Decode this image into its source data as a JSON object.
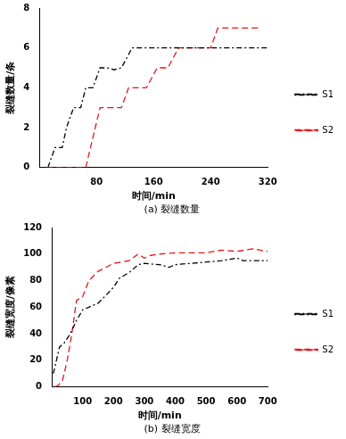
{
  "chart_data": [
    {
      "type": "line",
      "title": "(a) 裂缝数量",
      "x_label": "时间/min",
      "y_label": "裂缝数量/条",
      "xlim": [
        0,
        320
      ],
      "xticks": [
        80,
        160,
        240,
        320
      ],
      "ylim": [
        0,
        8
      ],
      "yticks": [
        0,
        2,
        4,
        6,
        8
      ],
      "grid": false,
      "legend": "right",
      "series": [
        {
          "name": "S1",
          "color": "#000000",
          "line_style": "dashdot",
          "x": [
            12,
            22,
            32,
            38,
            48,
            58,
            65,
            75,
            85,
            95,
            105,
            115,
            130,
            160,
            200,
            240,
            280,
            320
          ],
          "values": [
            0,
            1,
            1,
            2,
            3,
            3,
            4,
            4,
            5,
            5,
            4.9,
            5,
            6,
            6,
            6,
            6,
            6,
            6
          ]
        },
        {
          "name": "S2",
          "color": "#e8141b",
          "line_style": "dashed",
          "x": [
            10,
            40,
            65,
            85,
            100,
            115,
            125,
            140,
            150,
            165,
            180,
            195,
            210,
            225,
            240,
            250,
            270,
            290,
            310
          ],
          "values": [
            0,
            0,
            0,
            3,
            3,
            3,
            4,
            4,
            4,
            5,
            5,
            6,
            6,
            6,
            6,
            7,
            7,
            7,
            7
          ]
        }
      ]
    },
    {
      "type": "line",
      "title": "(b) 裂缝宽度",
      "x_label": "时间/min",
      "y_label": "裂缝宽度/像素",
      "xlim": [
        0,
        700
      ],
      "xticks": [
        100,
        200,
        300,
        400,
        500,
        600,
        700
      ],
      "ylim": [
        0,
        120
      ],
      "yticks": [
        0,
        20,
        40,
        60,
        80,
        100,
        120
      ],
      "grid": false,
      "legend": "right",
      "series": [
        {
          "name": "S1",
          "color": "#000000",
          "line_style": "dashdot",
          "x": [
            5,
            15,
            25,
            40,
            60,
            80,
            100,
            120,
            150,
            180,
            200,
            220,
            250,
            280,
            300,
            350,
            380,
            400,
            450,
            500,
            550,
            600,
            620,
            650,
            700
          ],
          "values": [
            10,
            20,
            30,
            33,
            40,
            50,
            58,
            60,
            63,
            70,
            75,
            82,
            86,
            92,
            93,
            92,
            90,
            92,
            93,
            94,
            95,
            97,
            95,
            95,
            95
          ]
        },
        {
          "name": "S2",
          "color": "#e8141b",
          "line_style": "dashed",
          "x": [
            10,
            20,
            35,
            50,
            65,
            80,
            100,
            120,
            150,
            200,
            250,
            280,
            300,
            320,
            350,
            400,
            450,
            500,
            550,
            600,
            650,
            700
          ],
          "values": [
            0,
            1,
            5,
            20,
            40,
            65,
            68,
            80,
            87,
            93,
            95,
            100,
            97,
            99,
            100,
            101,
            101,
            101,
            103,
            102,
            104,
            102
          ]
        }
      ]
    }
  ]
}
